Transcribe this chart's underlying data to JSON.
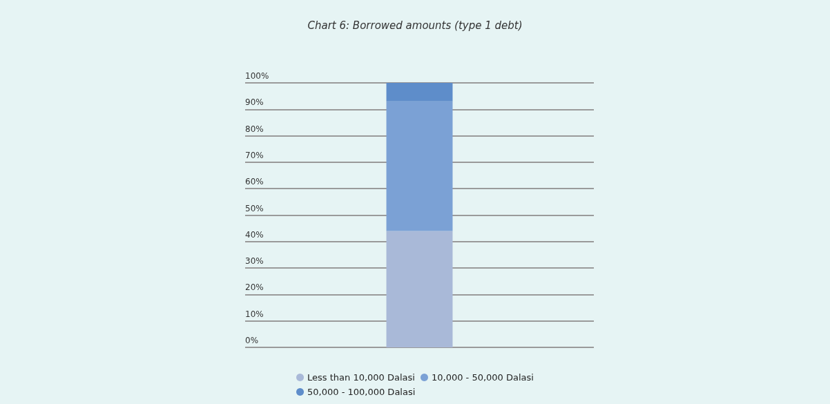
{
  "chart_data": {
    "type": "bar",
    "title": "Chart 6: Borrowed amounts (type 1 debt)",
    "categories": [
      null
    ],
    "stacked": true,
    "series": [
      {
        "name": "Less than 10,000 Dalasi",
        "color": "#a9b9d8",
        "values": [
          44
        ]
      },
      {
        "name": "10,000 - 50,000 Dalasi",
        "color": "#7ba1d5",
        "values": [
          49
        ]
      },
      {
        "name": "50,000 - 100,000 Dalasi",
        "color": "#5e8dca",
        "values": [
          7
        ]
      }
    ],
    "ylim": [
      0,
      100
    ],
    "yticks": [
      {
        "value": 0,
        "label": "0%"
      },
      {
        "value": 10,
        "label": "10%"
      },
      {
        "value": 20,
        "label": "20%"
      },
      {
        "value": 30,
        "label": "30%"
      },
      {
        "value": 40,
        "label": "40%"
      },
      {
        "value": 50,
        "label": "50%"
      },
      {
        "value": 60,
        "label": "60%"
      },
      {
        "value": 70,
        "label": "70%"
      },
      {
        "value": 80,
        "label": "80%"
      },
      {
        "value": 90,
        "label": "90%"
      },
      {
        "value": 100,
        "label": "100%"
      }
    ],
    "grid": "y",
    "legend": "bottom"
  }
}
